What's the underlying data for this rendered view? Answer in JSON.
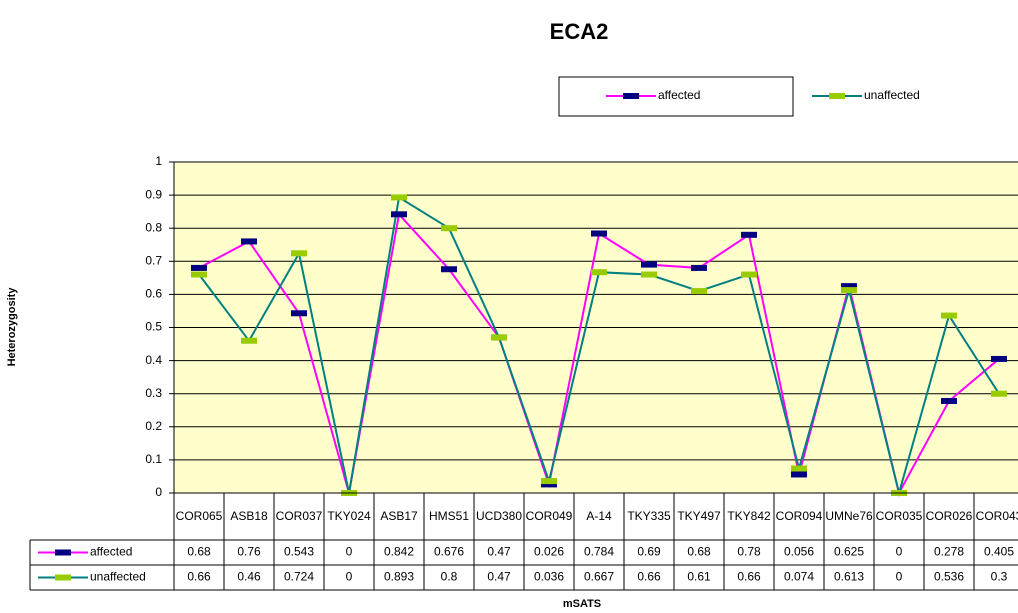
{
  "chart_data": {
    "type": "line",
    "title": "ECA2",
    "x_label": "mSATS",
    "y_label": "Heterozygosity",
    "categories": [
      "COR065",
      "ASB18",
      "COR037",
      "TKY024",
      "ASB17",
      "HMS51",
      "UCD380",
      "COR049",
      "A-14",
      "TKY335",
      "TKY497",
      "TKY842",
      "COR094",
      "UMNe76",
      "COR035",
      "COR026",
      "COR043"
    ],
    "series": [
      {
        "name": "affected",
        "color": "#ff00ff",
        "marker_color": "#000080",
        "values": [
          0.68,
          0.76,
          0.543,
          0,
          0.842,
          0.676,
          0.47,
          0.026,
          0.784,
          0.69,
          0.68,
          0.78,
          0.056,
          0.625,
          0,
          0.278,
          0.405
        ]
      },
      {
        "name": "unaffected",
        "color": "#008080",
        "marker_color": "#99cc00",
        "values": [
          0.66,
          0.46,
          0.724,
          0,
          0.893,
          0.8,
          0.47,
          0.036,
          0.667,
          0.66,
          0.61,
          0.66,
          0.074,
          0.613,
          0,
          0.536,
          0.3
        ]
      }
    ],
    "ylim": [
      0,
      1
    ],
    "yticks": [
      0,
      0.1,
      0.2,
      0.3,
      0.4,
      0.5,
      0.6,
      0.7,
      0.8,
      0.9,
      1
    ],
    "grid": true,
    "legend": "top-right",
    "data_table": true
  }
}
